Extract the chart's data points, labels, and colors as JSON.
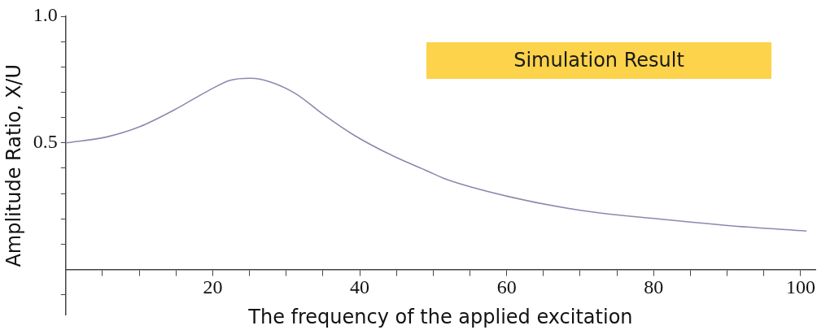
{
  "chart_data": {
    "type": "line",
    "xlabel": "The frequency of the applied excitation",
    "ylabel": "Amplitude Ratio, X/U",
    "annotations": [
      "Simulation Result"
    ],
    "x": [
      0,
      5.5,
      10.1,
      14.7,
      19.4,
      22.4,
      25.1,
      27.8,
      31.3,
      35.1,
      39.3,
      44.7,
      49.3,
      51.6,
      60.4,
      70.4,
      80.8,
      90.8,
      100.8
    ],
    "series": [
      {
        "color": "#8a8aae",
        "values": [
          0.5,
          0.523,
          0.564,
          0.629,
          0.706,
          0.747,
          0.755,
          0.741,
          0.694,
          0.611,
          0.529,
          0.446,
          0.388,
          0.358,
          0.287,
          0.232,
          0.199,
          0.172,
          0.152
        ]
      }
    ],
    "xlim": [
      0,
      102
    ],
    "ylim": [
      -0.18,
      1.0
    ],
    "xticks": [
      {
        "value": 5,
        "label": null
      },
      {
        "value": 10,
        "label": null
      },
      {
        "value": 15,
        "label": null
      },
      20,
      {
        "value": 25,
        "label": null
      },
      {
        "value": 30,
        "label": null
      },
      {
        "value": 35,
        "label": null
      },
      40,
      {
        "value": 45,
        "label": null
      },
      {
        "value": 50,
        "label": null
      },
      {
        "value": 55,
        "label": null
      },
      60,
      {
        "value": 65,
        "label": null
      },
      {
        "value": 70,
        "label": null
      },
      {
        "value": 75,
        "label": null
      },
      80,
      {
        "value": 85,
        "label": null
      },
      {
        "value": 90,
        "label": null
      },
      {
        "value": 95,
        "label": null
      },
      100
    ],
    "yticks": [
      {
        "value": -0.1,
        "label": null
      },
      {
        "value": 0.1,
        "label": null
      },
      {
        "value": 0.2,
        "label": null
      },
      {
        "value": 0.3,
        "label": null
      },
      {
        "value": 0.4,
        "label": null
      },
      0.5,
      {
        "value": 0.6,
        "label": null
      },
      {
        "value": 0.7,
        "label": null
      },
      {
        "value": 0.8,
        "label": null
      },
      {
        "value": 0.9,
        "label": null
      },
      {
        "value": 1.0,
        "label": "1.0"
      }
    ],
    "grid": false,
    "legend": false,
    "marker": "none",
    "line_style": "solid"
  }
}
